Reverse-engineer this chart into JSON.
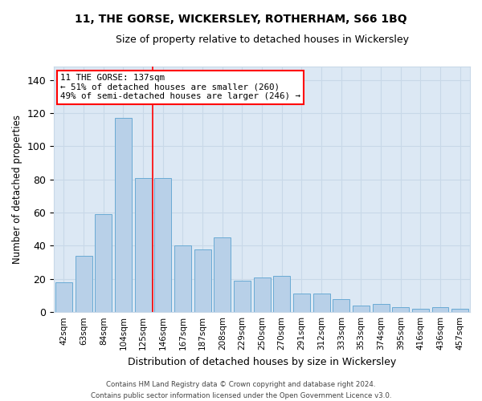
{
  "title": "11, THE GORSE, WICKERSLEY, ROTHERHAM, S66 1BQ",
  "subtitle": "Size of property relative to detached houses in Wickersley",
  "xlabel": "Distribution of detached houses by size in Wickersley",
  "ylabel": "Number of detached properties",
  "categories": [
    "42sqm",
    "63sqm",
    "84sqm",
    "104sqm",
    "125sqm",
    "146sqm",
    "167sqm",
    "187sqm",
    "208sqm",
    "229sqm",
    "250sqm",
    "270sqm",
    "291sqm",
    "312sqm",
    "333sqm",
    "353sqm",
    "374sqm",
    "395sqm",
    "416sqm",
    "436sqm",
    "457sqm"
  ],
  "values": [
    18,
    34,
    59,
    117,
    81,
    81,
    40,
    38,
    45,
    19,
    21,
    22,
    11,
    11,
    8,
    4,
    5,
    3,
    2,
    3,
    2
  ],
  "bar_color": "#b8d0e8",
  "bar_edge_color": "#6aaad4",
  "grid_color": "#c8d8e8",
  "bg_color": "#dce8f4",
  "vline_x": 4.5,
  "vline_color": "red",
  "annotation_text": "11 THE GORSE: 137sqm\n← 51% of detached houses are smaller (260)\n49% of semi-detached houses are larger (246) →",
  "annotation_box_color": "white",
  "annotation_box_edge": "red",
  "ylim": [
    0,
    148
  ],
  "yticks": [
    0,
    20,
    40,
    60,
    80,
    100,
    120,
    140
  ],
  "footer1": "Contains HM Land Registry data © Crown copyright and database right 2024.",
  "footer2": "Contains public sector information licensed under the Open Government Licence v3.0."
}
